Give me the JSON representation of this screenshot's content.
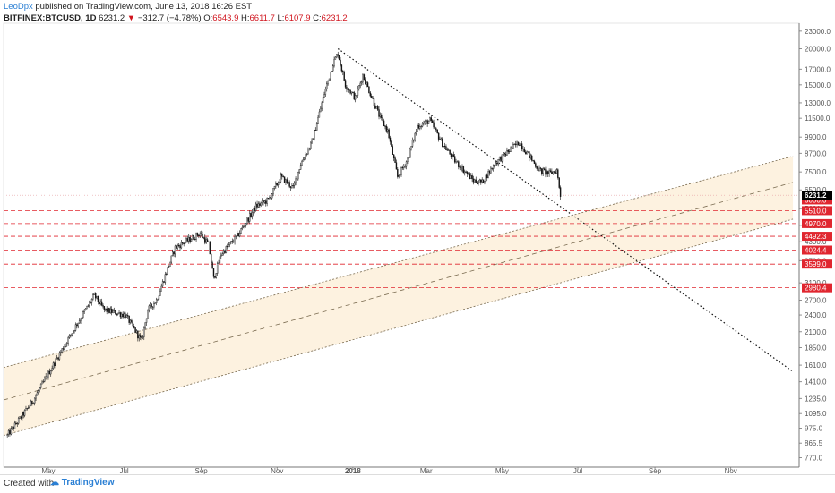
{
  "header": {
    "user": "LeoDpx",
    "published": "published on TradingView.com, June 13, 2018 16:26 EST",
    "symbol": "BITFINEX:BTCUSD, 1D",
    "last": "6231.2",
    "change_arrow": "▼",
    "change": "−312.7 (−4.78%)",
    "o_label": "O:",
    "o": "6543.9",
    "h_label": "H:",
    "h": "6611.7",
    "l_label": "L:",
    "l": "6107.9",
    "c_label": "C:",
    "c": "6231.2"
  },
  "footer": {
    "created": "Created with",
    "logo": "TradingView"
  },
  "chart_data": {
    "type": "candlestick",
    "scale": "log",
    "ylim": [
      715,
      24500
    ],
    "y_ticks": [
      23000,
      20000,
      17000,
      15000,
      13000,
      11500,
      9900,
      8700,
      7500,
      6500,
      5600,
      4900,
      4300,
      3700,
      3100,
      2700,
      2400,
      2100,
      1850,
      1610,
      1410,
      1235,
      1095,
      975,
      865.5,
      770
    ],
    "y_tick_labels": [
      "23000.0",
      "20000.0",
      "17000.0",
      "15000.0",
      "13000.0",
      "11500.0",
      "9900.0",
      "8700.0",
      "7500.0",
      "6500.0",
      "5600.0",
      "4900.0",
      "4300.0",
      "3700.0",
      "3100.0",
      "2700.0",
      "2400.0",
      "2100.0",
      "1850.0",
      "1610.0",
      "1410.0",
      "1235.0",
      "1095.0",
      "975.0",
      "865.5",
      "770.0"
    ],
    "x_ticks": [
      {
        "label": "May",
        "day": 33
      },
      {
        "label": "Jul",
        "day": 94
      },
      {
        "label": "Sep",
        "day": 156
      },
      {
        "label": "Nov",
        "day": 217
      },
      {
        "label": "2018",
        "day": 278
      },
      {
        "label": "Mar",
        "day": 337
      },
      {
        "label": "May",
        "day": 398
      },
      {
        "label": "Jul",
        "day": 459
      },
      {
        "label": "Sep",
        "day": 521
      },
      {
        "label": "Nov",
        "day": 582
      }
    ],
    "x_range": [
      -3,
      637
    ],
    "key_prices": [
      {
        "day": 0,
        "price": 920
      },
      {
        "day": 20,
        "price": 1200
      },
      {
        "day": 40,
        "price": 1700
      },
      {
        "day": 55,
        "price": 2200
      },
      {
        "day": 70,
        "price": 2800
      },
      {
        "day": 78,
        "price": 2500
      },
      {
        "day": 95,
        "price": 2400
      },
      {
        "day": 108,
        "price": 1950
      },
      {
        "day": 113,
        "price": 2500
      },
      {
        "day": 120,
        "price": 2700
      },
      {
        "day": 135,
        "price": 4100
      },
      {
        "day": 155,
        "price": 4600
      },
      {
        "day": 162,
        "price": 4200
      },
      {
        "day": 166,
        "price": 3200
      },
      {
        "day": 172,
        "price": 3900
      },
      {
        "day": 185,
        "price": 4500
      },
      {
        "day": 200,
        "price": 5700
      },
      {
        "day": 210,
        "price": 6000
      },
      {
        "day": 220,
        "price": 7200
      },
      {
        "day": 230,
        "price": 6600
      },
      {
        "day": 236,
        "price": 8000
      },
      {
        "day": 245,
        "price": 9500
      },
      {
        "day": 255,
        "price": 14000
      },
      {
        "day": 262,
        "price": 17800
      },
      {
        "day": 266,
        "price": 19300
      },
      {
        "day": 272,
        "price": 15000
      },
      {
        "day": 280,
        "price": 13500
      },
      {
        "day": 286,
        "price": 16200
      },
      {
        "day": 292,
        "price": 14000
      },
      {
        "day": 300,
        "price": 11500
      },
      {
        "day": 306,
        "price": 10400
      },
      {
        "day": 314,
        "price": 7200
      },
      {
        "day": 322,
        "price": 8300
      },
      {
        "day": 330,
        "price": 10800
      },
      {
        "day": 340,
        "price": 11300
      },
      {
        "day": 350,
        "price": 9400
      },
      {
        "day": 360,
        "price": 8200
      },
      {
        "day": 375,
        "price": 7000
      },
      {
        "day": 382,
        "price": 6900
      },
      {
        "day": 392,
        "price": 8000
      },
      {
        "day": 405,
        "price": 9000
      },
      {
        "day": 412,
        "price": 9500
      },
      {
        "day": 420,
        "price": 8500
      },
      {
        "day": 428,
        "price": 7600
      },
      {
        "day": 436,
        "price": 7400
      },
      {
        "day": 442,
        "price": 7600
      },
      {
        "day": 445,
        "price": 6231
      }
    ],
    "price_levels": [
      {
        "price": 6000,
        "label": "6000.0"
      },
      {
        "price": 5510,
        "label": "5510.0"
      },
      {
        "price": 4970,
        "label": "4970.0"
      },
      {
        "price": 4492.3,
        "label": "4492.3"
      },
      {
        "price": 4024.4,
        "label": "4024.4"
      },
      {
        "price": 3599,
        "label": "3599.0"
      },
      {
        "price": 2980.4,
        "label": "2980.4"
      }
    ],
    "last_price": {
      "price": 6231.2,
      "label": "6231.2"
    },
    "trendline": {
      "points": [
        {
          "day": 266,
          "price": 20000
        },
        {
          "day": 632,
          "price": 1530
        }
      ]
    },
    "channel": {
      "upper": [
        {
          "day": -3,
          "price": 1580
        },
        {
          "day": 632,
          "price": 8500
        }
      ],
      "mid": [
        {
          "day": -3,
          "price": 1220
        },
        {
          "day": 632,
          "price": 6900
        }
      ],
      "lower": [
        {
          "day": -3,
          "price": 920
        },
        {
          "day": 632,
          "price": 5150
        }
      ]
    },
    "colors": {
      "up": "#222222",
      "level": "#e0262f",
      "channel_fill": "#fdf1dd",
      "channel_line": "#7a6b50"
    }
  }
}
